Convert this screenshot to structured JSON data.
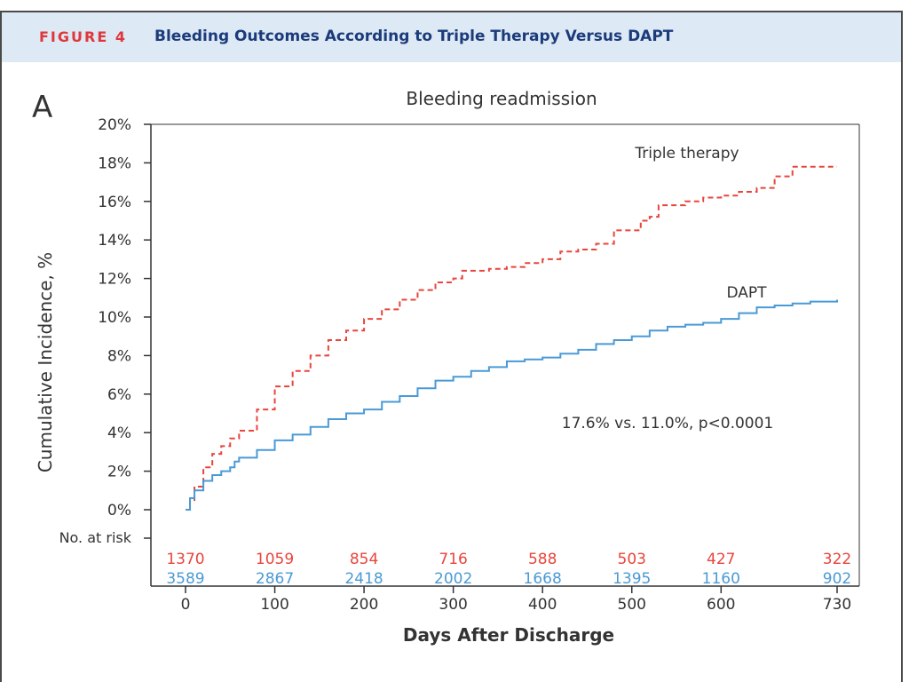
{
  "figure": {
    "label": "FIGURE 4",
    "title": "Bleeding Outcomes According to Triple Therapy Versus DAPT",
    "panel_letter": "A"
  },
  "colors": {
    "triple": "#e8453c",
    "dapt": "#4a9ad6",
    "axis": "#333333",
    "header_bg": "#dde9f5",
    "label_red": "#e0373b",
    "title_blue": "#1b3b7a"
  },
  "chart_data": {
    "type": "line",
    "title": "Bleeding readmission",
    "xlabel": "Days After Discharge",
    "ylabel": "Cumulative Incidence, %",
    "xlim": [
      0,
      730
    ],
    "ylim": [
      0,
      20
    ],
    "x_ticks": [
      0,
      100,
      200,
      300,
      400,
      500,
      600,
      730
    ],
    "x_tick_labels": [
      "0",
      "100",
      "200",
      "300",
      "400",
      "500",
      "600",
      "730"
    ],
    "y_ticks": [
      0,
      2,
      4,
      6,
      8,
      10,
      12,
      14,
      16,
      18,
      20
    ],
    "y_tick_labels": [
      "0%",
      "2%",
      "4%",
      "6%",
      "8%",
      "10%",
      "12%",
      "14%",
      "16%",
      "18%",
      "20%"
    ],
    "annotation": "17.6% vs. 11.0%, p<0.0001",
    "series": [
      {
        "name": "Triple therapy",
        "style": "dashed",
        "x": [
          0,
          5,
          10,
          20,
          30,
          40,
          50,
          60,
          80,
          100,
          120,
          140,
          160,
          180,
          200,
          220,
          240,
          260,
          280,
          300,
          310,
          320,
          340,
          360,
          380,
          400,
          420,
          440,
          460,
          480,
          500,
          510,
          520,
          530,
          560,
          580,
          600,
          620,
          640,
          660,
          680,
          700,
          730
        ],
        "y": [
          0,
          0.5,
          1.2,
          2.2,
          2.9,
          3.3,
          3.7,
          4.1,
          5.2,
          6.4,
          7.2,
          8.0,
          8.8,
          9.3,
          9.9,
          10.4,
          10.9,
          11.4,
          11.8,
          12.0,
          12.4,
          12.4,
          12.5,
          12.6,
          12.8,
          13.0,
          13.4,
          13.5,
          13.8,
          14.5,
          14.5,
          15.0,
          15.2,
          15.8,
          16.0,
          16.2,
          16.3,
          16.5,
          16.7,
          17.3,
          17.8,
          17.8,
          17.8
        ]
      },
      {
        "name": "DAPT",
        "style": "solid",
        "x": [
          0,
          5,
          10,
          20,
          30,
          40,
          50,
          55,
          60,
          80,
          100,
          120,
          140,
          160,
          180,
          200,
          220,
          240,
          260,
          280,
          300,
          320,
          340,
          360,
          380,
          400,
          420,
          440,
          460,
          480,
          500,
          520,
          540,
          560,
          580,
          600,
          620,
          640,
          660,
          680,
          700,
          730
        ],
        "y": [
          0,
          0.6,
          1.0,
          1.5,
          1.8,
          2.0,
          2.2,
          2.5,
          2.7,
          3.1,
          3.6,
          3.9,
          4.3,
          4.7,
          5.0,
          5.2,
          5.6,
          5.9,
          6.3,
          6.7,
          6.9,
          7.2,
          7.4,
          7.7,
          7.8,
          7.9,
          8.1,
          8.3,
          8.6,
          8.8,
          9.0,
          9.3,
          9.5,
          9.6,
          9.7,
          9.9,
          10.2,
          10.5,
          10.6,
          10.7,
          10.8,
          10.9
        ]
      }
    ],
    "at_risk": {
      "label": "No. at risk",
      "x": [
        0,
        100,
        200,
        300,
        400,
        500,
        600,
        730
      ],
      "rows": [
        {
          "name": "Triple therapy",
          "values": [
            "1370",
            "1059",
            "854",
            "716",
            "588",
            "503",
            "427",
            "322"
          ]
        },
        {
          "name": "DAPT",
          "values": [
            "3589",
            "2867",
            "2418",
            "2002",
            "1668",
            "1395",
            "1160",
            "902"
          ]
        }
      ]
    }
  }
}
